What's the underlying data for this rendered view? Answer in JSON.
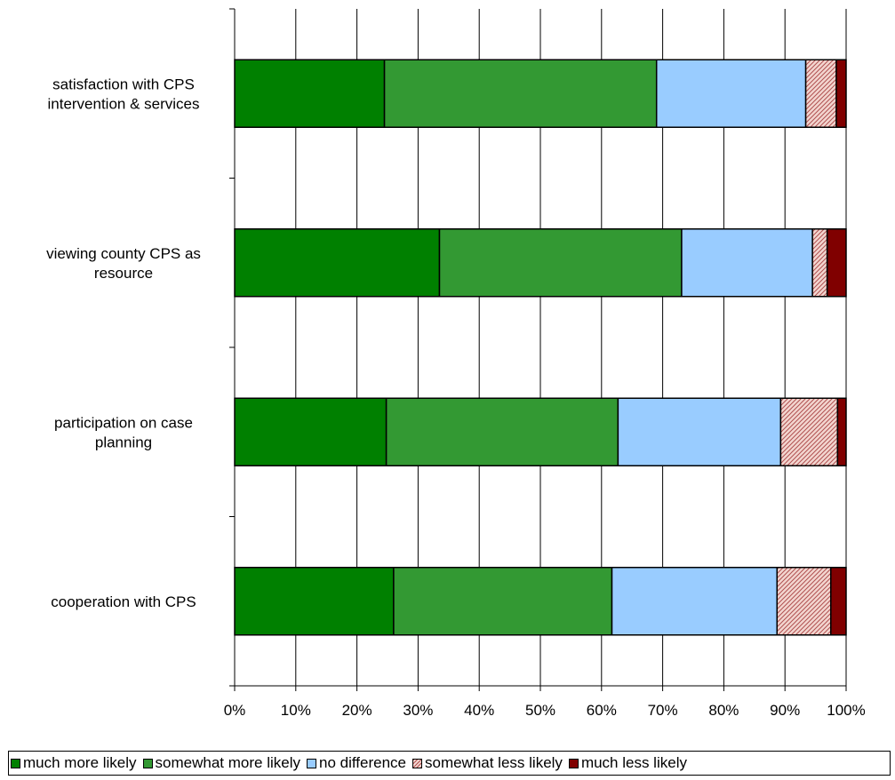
{
  "chart_data": {
    "type": "bar",
    "orientation": "horizontal",
    "stacked": true,
    "categories": [
      [
        "satisfaction with CPS",
        "intervention & services"
      ],
      [
        "viewing county CPS as",
        "resource"
      ],
      [
        "participation on case",
        "planning"
      ],
      [
        "cooperation with CPS"
      ]
    ],
    "series": [
      {
        "name": "much more likely",
        "color": "#008000",
        "values": [
          24.5,
          33.5,
          24.8,
          26.0
        ]
      },
      {
        "name": "somewhat more likely",
        "color": "#339933",
        "values": [
          44.5,
          39.6,
          37.9,
          35.7
        ]
      },
      {
        "name": "no difference",
        "color": "#99ccff",
        "values": [
          24.4,
          21.4,
          26.6,
          27.0
        ]
      },
      {
        "name": "somewhat less likely",
        "color": "#e8b8b0",
        "pattern": "hatch",
        "values": [
          5.0,
          2.4,
          9.3,
          8.8
        ]
      },
      {
        "name": "much less likely",
        "color": "#800000",
        "values": [
          1.6,
          3.1,
          1.4,
          2.5
        ]
      }
    ],
    "x_ticks": [
      "0%",
      "10%",
      "20%",
      "30%",
      "40%",
      "50%",
      "60%",
      "70%",
      "80%",
      "90%",
      "100%"
    ],
    "xlim": [
      0,
      100
    ],
    "grid": true,
    "legend": "bottom",
    "title": "",
    "xlabel": "",
    "ylabel": ""
  }
}
